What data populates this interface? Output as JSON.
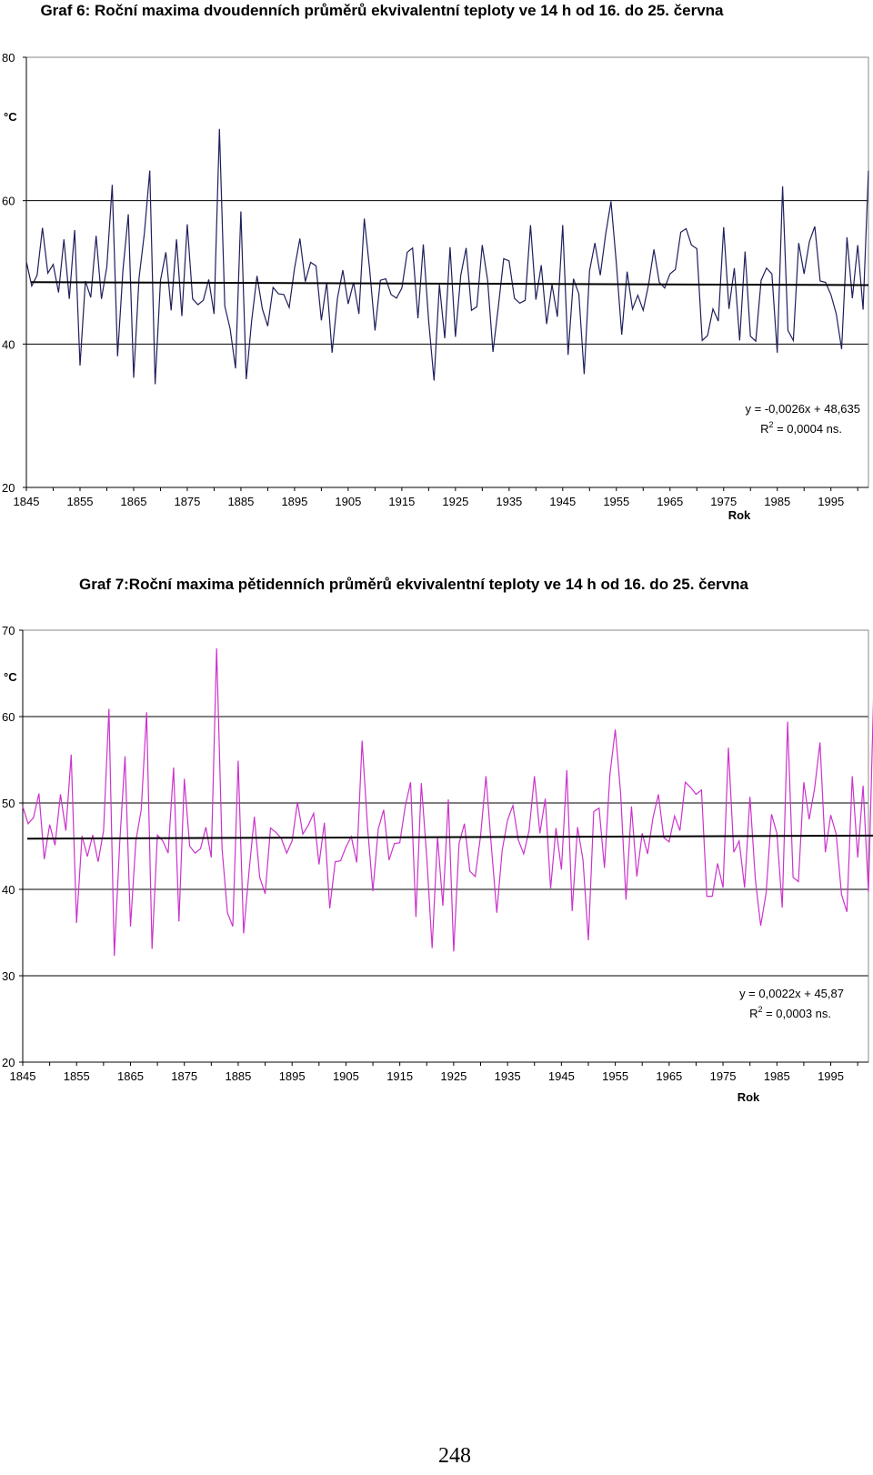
{
  "chart_data": [
    {
      "type": "line",
      "title": "Graf 6: Roční maxima dvoudenních průměrů ekvivalentní teploty ve 14 h od 16. do 25. června",
      "xlabel": "Rok",
      "ylabel": "°C",
      "ylim": [
        20,
        80
      ],
      "yticks": [
        "20",
        "40",
        "60",
        "80"
      ],
      "xlim": [
        1845,
        2002
      ],
      "xticks": [
        "1845",
        "1855",
        "1865",
        "1875",
        "1885",
        "1895",
        "1905",
        "1915",
        "1925",
        "1935",
        "1945",
        "1955",
        "1965",
        "1975",
        "1985",
        "1995"
      ],
      "grid_lines_at": [
        40,
        60
      ],
      "series_color": "#1f1f5c",
      "trend_color": "#000000",
      "trend": {
        "slope": -0.0026,
        "intercept": 48.635,
        "equation": "y = -0,0026x + 48,635",
        "r2_prefix": "R",
        "r2_sup": "2",
        "r2_value": " = 0,0004 ns."
      },
      "x_start": 1845,
      "values": [
        51.5,
        48.1,
        49.6,
        56.2,
        49.9,
        51.1,
        47.2,
        54.6,
        46.3,
        55.9,
        37.0,
        48.8,
        46.5,
        55.1,
        46.3,
        50.8,
        62.2,
        38.3,
        50.3,
        58.1,
        35.3,
        49.2,
        55.5,
        64.2,
        34.4,
        48.9,
        52.8,
        44.7,
        54.6,
        43.9,
        56.7,
        46.3,
        45.5,
        46.1,
        49.0,
        44.2,
        70.0,
        45.3,
        42.1,
        36.6,
        58.5,
        35.1,
        43.2,
        49.5,
        44.9,
        42.5,
        47.9,
        47.0,
        46.9,
        45.1,
        50.6,
        54.7,
        48.7,
        51.4,
        50.9,
        43.3,
        48.6,
        38.8,
        46.4,
        50.3,
        45.6,
        48.6,
        44.2,
        57.5,
        50.4,
        41.9,
        48.9,
        49.1,
        46.9,
        46.4,
        47.8,
        52.8,
        53.4,
        43.6,
        53.9,
        43.2,
        34.9,
        48.3,
        40.8,
        53.5,
        41.0,
        49.6,
        53.4,
        44.7,
        45.2,
        53.8,
        48.9,
        38.9,
        45.2,
        51.9,
        51.6,
        46.4,
        45.7,
        46.1,
        56.6,
        46.2,
        51.0,
        42.8,
        48.3,
        43.8,
        56.6,
        38.5,
        49.1,
        47.0,
        35.8,
        50.2,
        54.1,
        49.6,
        55.3,
        59.9,
        51.2,
        41.3,
        50.1,
        44.9,
        46.8,
        44.7,
        48.3,
        53.2,
        48.6,
        47.8,
        49.8,
        50.4,
        55.6,
        56.1,
        53.8,
        53.3,
        40.5,
        41.2,
        44.9,
        43.2,
        56.3,
        44.9,
        50.6,
        40.5,
        52.9,
        41.1,
        40.4,
        48.9,
        50.6,
        49.8,
        38.8,
        62.0,
        41.9,
        40.5,
        54.1,
        49.8,
        54.3,
        56.4,
        48.8,
        48.6,
        46.9,
        44.2,
        39.3,
        54.9,
        46.4,
        53.8,
        44.8,
        64.2
      ]
    },
    {
      "type": "line",
      "title": "Graf 7:Roční maxima pětidenních průměrů ekvivalentní teploty ve 14 h od 16. do 25. června",
      "xlabel": "Rok",
      "ylabel": "°C",
      "ylim": [
        20,
        70
      ],
      "yticks": [
        "20",
        "30",
        "40",
        "50",
        "60",
        "70"
      ],
      "xlim": [
        1845,
        2002
      ],
      "xticks": [
        "1845",
        "1855",
        "1865",
        "1875",
        "1885",
        "1895",
        "1905",
        "1915",
        "1925",
        "1935",
        "1945",
        "1955",
        "1965",
        "1975",
        "1985",
        "1995"
      ],
      "grid_lines_at": [
        30,
        40,
        50,
        60
      ],
      "series_color": "#cc33cc",
      "trend_color": "#000000",
      "trend": {
        "slope": 0.0022,
        "intercept": 45.87,
        "equation": "y = 0,0022x + 45,87",
        "r2_prefix": "R",
        "r2_sup": "2",
        "r2_value": " = 0,0003 ns."
      },
      "x_start": 1845,
      "values": [
        49.6,
        47.6,
        48.3,
        51.1,
        43.5,
        47.5,
        45.1,
        51.0,
        46.8,
        55.6,
        36.1,
        46.2,
        43.8,
        46.3,
        43.2,
        46.8,
        60.9,
        32.3,
        45.3,
        55.4,
        35.7,
        45.6,
        49.2,
        60.5,
        33.1,
        46.3,
        45.6,
        44.2,
        54.1,
        36.3,
        52.8,
        45.0,
        44.2,
        44.7,
        47.2,
        43.7,
        67.9,
        44.7,
        37.3,
        35.7,
        54.9,
        34.9,
        42.0,
        48.4,
        41.4,
        39.5,
        47.1,
        46.6,
        45.9,
        44.2,
        45.6,
        50.1,
        46.4,
        47.4,
        48.8,
        42.9,
        47.7,
        37.8,
        43.2,
        43.3,
        44.9,
        46.1,
        43.1,
        57.2,
        47.3,
        39.8,
        47.0,
        49.2,
        43.4,
        45.3,
        45.4,
        49.6,
        52.4,
        36.8,
        52.3,
        43.7,
        33.2,
        46.1,
        38.1,
        50.4,
        32.8,
        45.3,
        47.6,
        42.1,
        41.5,
        46.2,
        53.1,
        44.9,
        37.3,
        44.5,
        48.0,
        49.7,
        45.7,
        44.1,
        46.8,
        53.1,
        46.5,
        50.5,
        40.1,
        47.1,
        42.3,
        53.8,
        37.5,
        47.2,
        43.4,
        34.1,
        49.0,
        49.4,
        42.5,
        53.3,
        58.5,
        51.1,
        38.8,
        49.6,
        41.5,
        46.5,
        44.1,
        48.3,
        51.0,
        46.0,
        45.5,
        48.5,
        46.8,
        52.4,
        51.8,
        51.0,
        51.5,
        39.2,
        39.2,
        43.0,
        40.2,
        56.4,
        44.3,
        45.6,
        40.2,
        50.7,
        41.2,
        35.8,
        39.6,
        48.7,
        46.5,
        37.9,
        59.4,
        41.4,
        40.9,
        52.4,
        48.1,
        51.7,
        57.0,
        44.3,
        48.6,
        46.4,
        39.4,
        37.4,
        53.1,
        43.7,
        52.0,
        39.7,
        63.3
      ]
    }
  ],
  "page": {
    "number": "248"
  }
}
